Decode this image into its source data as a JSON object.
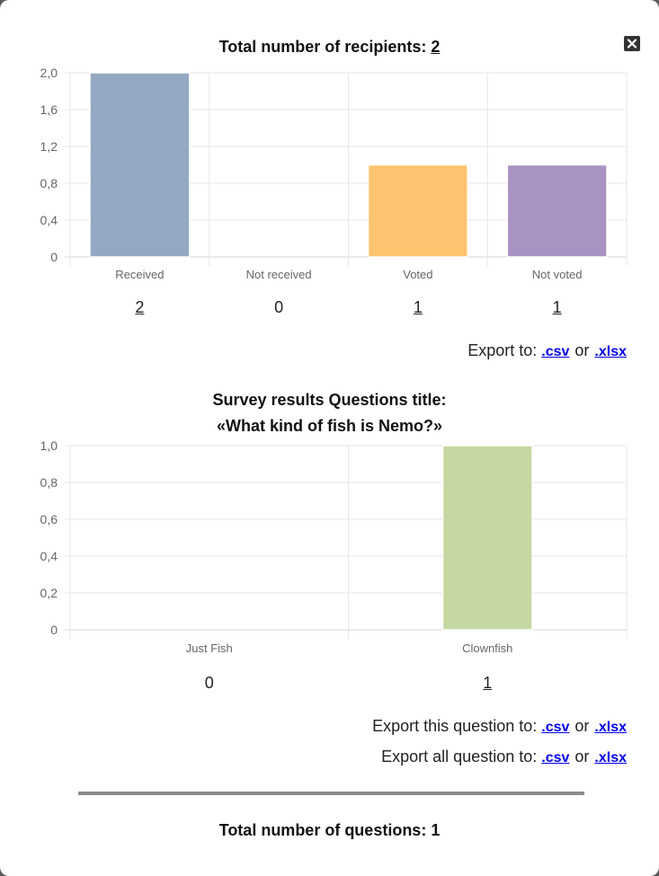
{
  "recipients": {
    "title_prefix": "Total number of recipients: ",
    "total": "2"
  },
  "chart_data": [
    {
      "type": "bar",
      "categories": [
        "Received",
        "Not received",
        "Voted",
        "Not voted"
      ],
      "values": [
        2,
        0,
        1,
        1
      ],
      "colors": [
        "#94a8c3",
        "#cccccc",
        "#ffc470",
        "#a893c3"
      ],
      "ylim": [
        0,
        2
      ],
      "yticks": [
        "0",
        "0,4",
        "0,8",
        "1,2",
        "1,6",
        "2,0"
      ],
      "grid": true,
      "counts": [
        "2",
        "0",
        "1",
        "1"
      ]
    },
    {
      "type": "bar",
      "categories": [
        "Just Fish",
        "Clownfish"
      ],
      "values": [
        0,
        1
      ],
      "colors": [
        "#cccccc",
        "#c6d8a2"
      ],
      "ylim": [
        0,
        1
      ],
      "yticks": [
        "0",
        "0,2",
        "0,4",
        "0,6",
        "0,8",
        "1,0"
      ],
      "grid": true,
      "counts": [
        "0",
        "1"
      ]
    }
  ],
  "export1": {
    "label": "Export to:",
    "csv": ".csv",
    "or": "or",
    "xlsx": ".xlsx"
  },
  "survey": {
    "title_line1": "Survey results Questions title:",
    "title_line2": "«What kind of fish is Nemo?»"
  },
  "export2": {
    "label": "Export this question to:",
    "csv": ".csv",
    "or": "or",
    "xlsx": ".xlsx"
  },
  "export3": {
    "label": "Export all question to:",
    "csv": ".csv",
    "or": "or",
    "xlsx": ".xlsx"
  },
  "questions": {
    "title_prefix": "Total number of questions: ",
    "total": "1"
  },
  "icons": {
    "close": "close-icon"
  }
}
